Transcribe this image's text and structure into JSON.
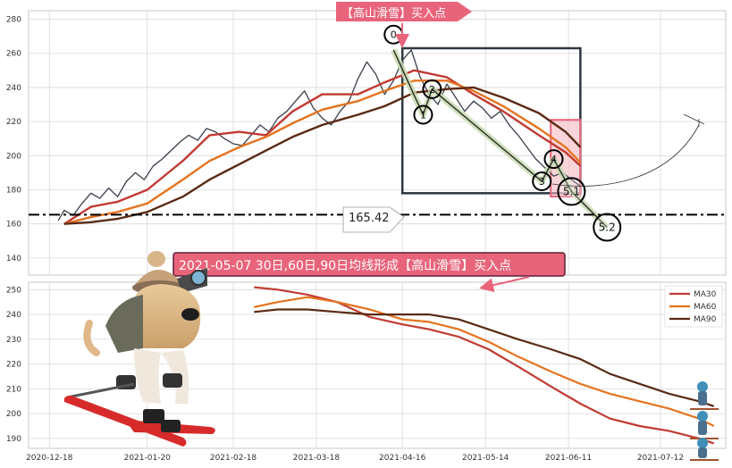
{
  "chart_data": [
    {
      "type": "line",
      "panel": "price",
      "ylim": [
        130,
        285
      ],
      "yticks": [
        140,
        160,
        180,
        200,
        220,
        240,
        260,
        280
      ],
      "grid": true,
      "series": [
        {
          "key": "price",
          "color": "#3a3f4b",
          "points": [
            [
              "2020-12-21",
              162
            ],
            [
              "2020-12-23",
              168
            ],
            [
              "2020-12-26",
              165
            ],
            [
              "2020-12-29",
              172
            ],
            [
              "2021-01-01",
              178
            ],
            [
              "2021-01-04",
              175
            ],
            [
              "2021-01-07",
              181
            ],
            [
              "2021-01-10",
              176
            ],
            [
              "2021-01-13",
              185
            ],
            [
              "2021-01-16",
              190
            ],
            [
              "2021-01-19",
              186
            ],
            [
              "2021-01-22",
              194
            ],
            [
              "2021-01-25",
              198
            ],
            [
              "2021-01-28",
              203
            ],
            [
              "2021-01-31",
              208
            ],
            [
              "2021-02-03",
              212
            ],
            [
              "2021-02-06",
              209
            ],
            [
              "2021-02-09",
              216
            ],
            [
              "2021-02-12",
              214
            ],
            [
              "2021-02-15",
              210
            ],
            [
              "2021-02-18",
              207
            ],
            [
              "2021-02-21",
              206
            ],
            [
              "2021-02-24",
              212
            ],
            [
              "2021-02-27",
              218
            ],
            [
              "2021-03-02",
              214
            ],
            [
              "2021-03-05",
              222
            ],
            [
              "2021-03-08",
              226
            ],
            [
              "2021-03-11",
              232
            ],
            [
              "2021-03-14",
              238
            ],
            [
              "2021-03-17",
              228
            ],
            [
              "2021-03-20",
              222
            ],
            [
              "2021-03-23",
              218
            ],
            [
              "2021-03-26",
              226
            ],
            [
              "2021-03-29",
              232
            ],
            [
              "2021-04-01",
              245
            ],
            [
              "2021-04-04",
              255
            ],
            [
              "2021-04-07",
              248
            ],
            [
              "2021-04-10",
              236
            ],
            [
              "2021-04-13",
              244
            ],
            [
              "2021-04-16",
              256
            ],
            [
              "2021-04-19",
              262
            ],
            [
              "2021-04-22",
              246
            ],
            [
              "2021-04-25",
              236
            ],
            [
              "2021-04-28",
              230
            ],
            [
              "2021-05-01",
              242
            ],
            [
              "2021-05-04",
              234
            ],
            [
              "2021-05-07",
              226
            ],
            [
              "2021-05-10",
              232
            ],
            [
              "2021-05-13",
              228
            ],
            [
              "2021-05-16",
              222
            ],
            [
              "2021-05-19",
              226
            ],
            [
              "2021-05-22",
              218
            ],
            [
              "2021-05-25",
              212
            ],
            [
              "2021-05-28",
              205
            ],
            [
              "2021-05-31",
              198
            ],
            [
              "2021-06-03",
              193
            ],
            [
              "2021-06-06",
              188
            ],
            [
              "2021-06-09",
              190
            ],
            [
              "2021-06-12",
              186
            ],
            [
              "2021-06-15",
              182
            ]
          ]
        },
        {
          "key": "ma30",
          "color": "#c13a32",
          "points": [
            [
              "2020-12-23",
              160
            ],
            [
              "2021-01-01",
              170
            ],
            [
              "2021-01-10",
              173
            ],
            [
              "2021-01-20",
              180
            ],
            [
              "2021-02-01",
              197
            ],
            [
              "2021-02-10",
              212
            ],
            [
              "2021-02-20",
              214
            ],
            [
              "2021-03-01",
              212
            ],
            [
              "2021-03-10",
              226
            ],
            [
              "2021-03-20",
              236
            ],
            [
              "2021-04-01",
              236
            ],
            [
              "2021-04-10",
              243
            ],
            [
              "2021-04-20",
              250
            ],
            [
              "2021-05-01",
              246
            ],
            [
              "2021-05-10",
              236
            ],
            [
              "2021-05-20",
              226
            ],
            [
              "2021-06-01",
              212
            ],
            [
              "2021-06-10",
              202
            ],
            [
              "2021-06-15",
              194
            ]
          ]
        },
        {
          "key": "ma60",
          "color": "#e5731f",
          "points": [
            [
              "2020-12-23",
              160
            ],
            [
              "2021-01-01",
              164
            ],
            [
              "2021-01-10",
              167
            ],
            [
              "2021-01-20",
              172
            ],
            [
              "2021-02-01",
              186
            ],
            [
              "2021-02-10",
              197
            ],
            [
              "2021-02-20",
              205
            ],
            [
              "2021-03-01",
              211
            ],
            [
              "2021-03-10",
              219
            ],
            [
              "2021-03-20",
              227
            ],
            [
              "2021-04-01",
              232
            ],
            [
              "2021-04-10",
              238
            ],
            [
              "2021-04-20",
              244
            ],
            [
              "2021-05-01",
              244
            ],
            [
              "2021-05-10",
              238
            ],
            [
              "2021-05-20",
              229
            ],
            [
              "2021-06-01",
              216
            ],
            [
              "2021-06-10",
              205
            ],
            [
              "2021-06-15",
              196
            ]
          ]
        },
        {
          "key": "ma90",
          "color": "#5a2a14",
          "points": [
            [
              "2020-12-23",
              160
            ],
            [
              "2021-01-01",
              161
            ],
            [
              "2021-01-10",
              163
            ],
            [
              "2021-01-20",
              167
            ],
            [
              "2021-02-01",
              176
            ],
            [
              "2021-02-10",
              186
            ],
            [
              "2021-02-20",
              195
            ],
            [
              "2021-03-01",
              203
            ],
            [
              "2021-03-10",
              211
            ],
            [
              "2021-03-20",
              218
            ],
            [
              "2021-04-01",
              224
            ],
            [
              "2021-04-10",
              229
            ],
            [
              "2021-04-20",
              237
            ],
            [
              "2021-05-01",
              239
            ],
            [
              "2021-05-10",
              240
            ],
            [
              "2021-05-20",
              234
            ],
            [
              "2021-06-01",
              225
            ],
            [
              "2021-06-10",
              214
            ],
            [
              "2021-06-15",
              205
            ]
          ]
        }
      ],
      "hline": {
        "value": 165.42,
        "label": "165.42"
      },
      "markers": [
        {
          "label": "0",
          "x": "2021-04-13",
          "y": 271
        },
        {
          "label": "1",
          "x": "2021-04-23",
          "y": 224
        },
        {
          "label": "2",
          "x": "2021-04-26",
          "y": 239
        },
        {
          "label": "3",
          "x": "2021-06-02",
          "y": 185
        },
        {
          "label": "4",
          "x": "2021-06-06",
          "y": 198
        },
        {
          "label": "5.1",
          "x": "2021-06-12",
          "y": 179
        },
        {
          "label": "5.2",
          "x": "2021-06-24",
          "y": 158
        }
      ],
      "pattern_path": [
        [
          "2021-04-13",
          262
        ],
        [
          "2021-04-23",
          224
        ],
        [
          "2021-04-26",
          239
        ],
        [
          "2021-06-02",
          185
        ],
        [
          "2021-06-06",
          198
        ],
        [
          "2021-06-12",
          179
        ],
        [
          "2021-06-24",
          158
        ]
      ],
      "box": {
        "x0": "2021-04-16",
        "x1": "2021-06-15",
        "y0": 178,
        "y1": 263
      },
      "red_box": {
        "x0": "2021-06-05",
        "x1": "2021-06-15",
        "y0": 176,
        "y1": 221
      },
      "callout_top": "【高山滑雪】买入点",
      "hline_label": "165.42"
    },
    {
      "type": "line",
      "panel": "ma",
      "ylim": [
        186,
        253
      ],
      "yticks": [
        190,
        200,
        210,
        220,
        230,
        240,
        250
      ],
      "grid": true,
      "legend": "top-right",
      "series": [
        {
          "key": "ma30",
          "name": "MA30",
          "color": "#c13a32",
          "points": [
            [
              "2021-02-25",
              251
            ],
            [
              "2021-03-05",
              250
            ],
            [
              "2021-03-15",
              248
            ],
            [
              "2021-03-25",
              245
            ],
            [
              "2021-04-05",
              239
            ],
            [
              "2021-04-16",
              236
            ],
            [
              "2021-04-25",
              234
            ],
            [
              "2021-05-05",
              231
            ],
            [
              "2021-05-15",
              226
            ],
            [
              "2021-05-25",
              219
            ],
            [
              "2021-06-05",
              211
            ],
            [
              "2021-06-15",
              204
            ],
            [
              "2021-06-25",
              198
            ],
            [
              "2021-07-05",
              195
            ],
            [
              "2021-07-15",
              193
            ],
            [
              "2021-07-25",
              190
            ],
            [
              "2021-07-30",
              188
            ]
          ]
        },
        {
          "key": "ma60",
          "name": "MA60",
          "color": "#e5731f",
          "points": [
            [
              "2021-02-25",
              243
            ],
            [
              "2021-03-05",
              245
            ],
            [
              "2021-03-15",
              247
            ],
            [
              "2021-03-25",
              245
            ],
            [
              "2021-04-05",
              242
            ],
            [
              "2021-04-16",
              238
            ],
            [
              "2021-04-25",
              237
            ],
            [
              "2021-05-05",
              234
            ],
            [
              "2021-05-15",
              229
            ],
            [
              "2021-05-25",
              223
            ],
            [
              "2021-06-05",
              217
            ],
            [
              "2021-06-15",
              212
            ],
            [
              "2021-06-25",
              208
            ],
            [
              "2021-07-05",
              205
            ],
            [
              "2021-07-15",
              202
            ],
            [
              "2021-07-25",
              198
            ],
            [
              "2021-07-30",
              195
            ]
          ]
        },
        {
          "key": "ma90",
          "name": "MA90",
          "color": "#5a2a14",
          "points": [
            [
              "2021-02-25",
              241
            ],
            [
              "2021-03-05",
              242
            ],
            [
              "2021-03-15",
              242
            ],
            [
              "2021-03-25",
              241
            ],
            [
              "2021-04-05",
              240
            ],
            [
              "2021-04-16",
              240
            ],
            [
              "2021-04-25",
              240
            ],
            [
              "2021-05-05",
              238
            ],
            [
              "2021-05-15",
              234
            ],
            [
              "2021-05-25",
              230
            ],
            [
              "2021-06-05",
              226
            ],
            [
              "2021-06-15",
              222
            ],
            [
              "2021-06-25",
              216
            ],
            [
              "2021-07-05",
              212
            ],
            [
              "2021-07-15",
              208
            ],
            [
              "2021-07-25",
              205
            ],
            [
              "2021-07-30",
              203
            ]
          ]
        }
      ]
    }
  ],
  "x_axis": {
    "xlim": [
      "2020-12-11",
      "2021-08-03"
    ],
    "ticks": [
      "2020-12-18",
      "2021-01-20",
      "2021-02-18",
      "2021-03-18",
      "2021-04-16",
      "2021-05-14",
      "2021-06-11",
      "2021-07-12"
    ]
  },
  "annotation_main": "2021-05-07 30日,60日,90日均线形成【高山滑雪】买入点",
  "colors": {
    "callout_fill": "#e8647a",
    "callout_border": "#5b1f3a",
    "box_stroke": "#2f3640",
    "red_box_fill": "#f5b8c0",
    "pattern_fill": "#c8dcb0",
    "grid": "#d9d9d9",
    "frame": "#c8c8c8"
  },
  "icons": [
    "skiing-dog-image",
    "skier-figure-icon",
    "ski-trail-arrow-icon"
  ]
}
